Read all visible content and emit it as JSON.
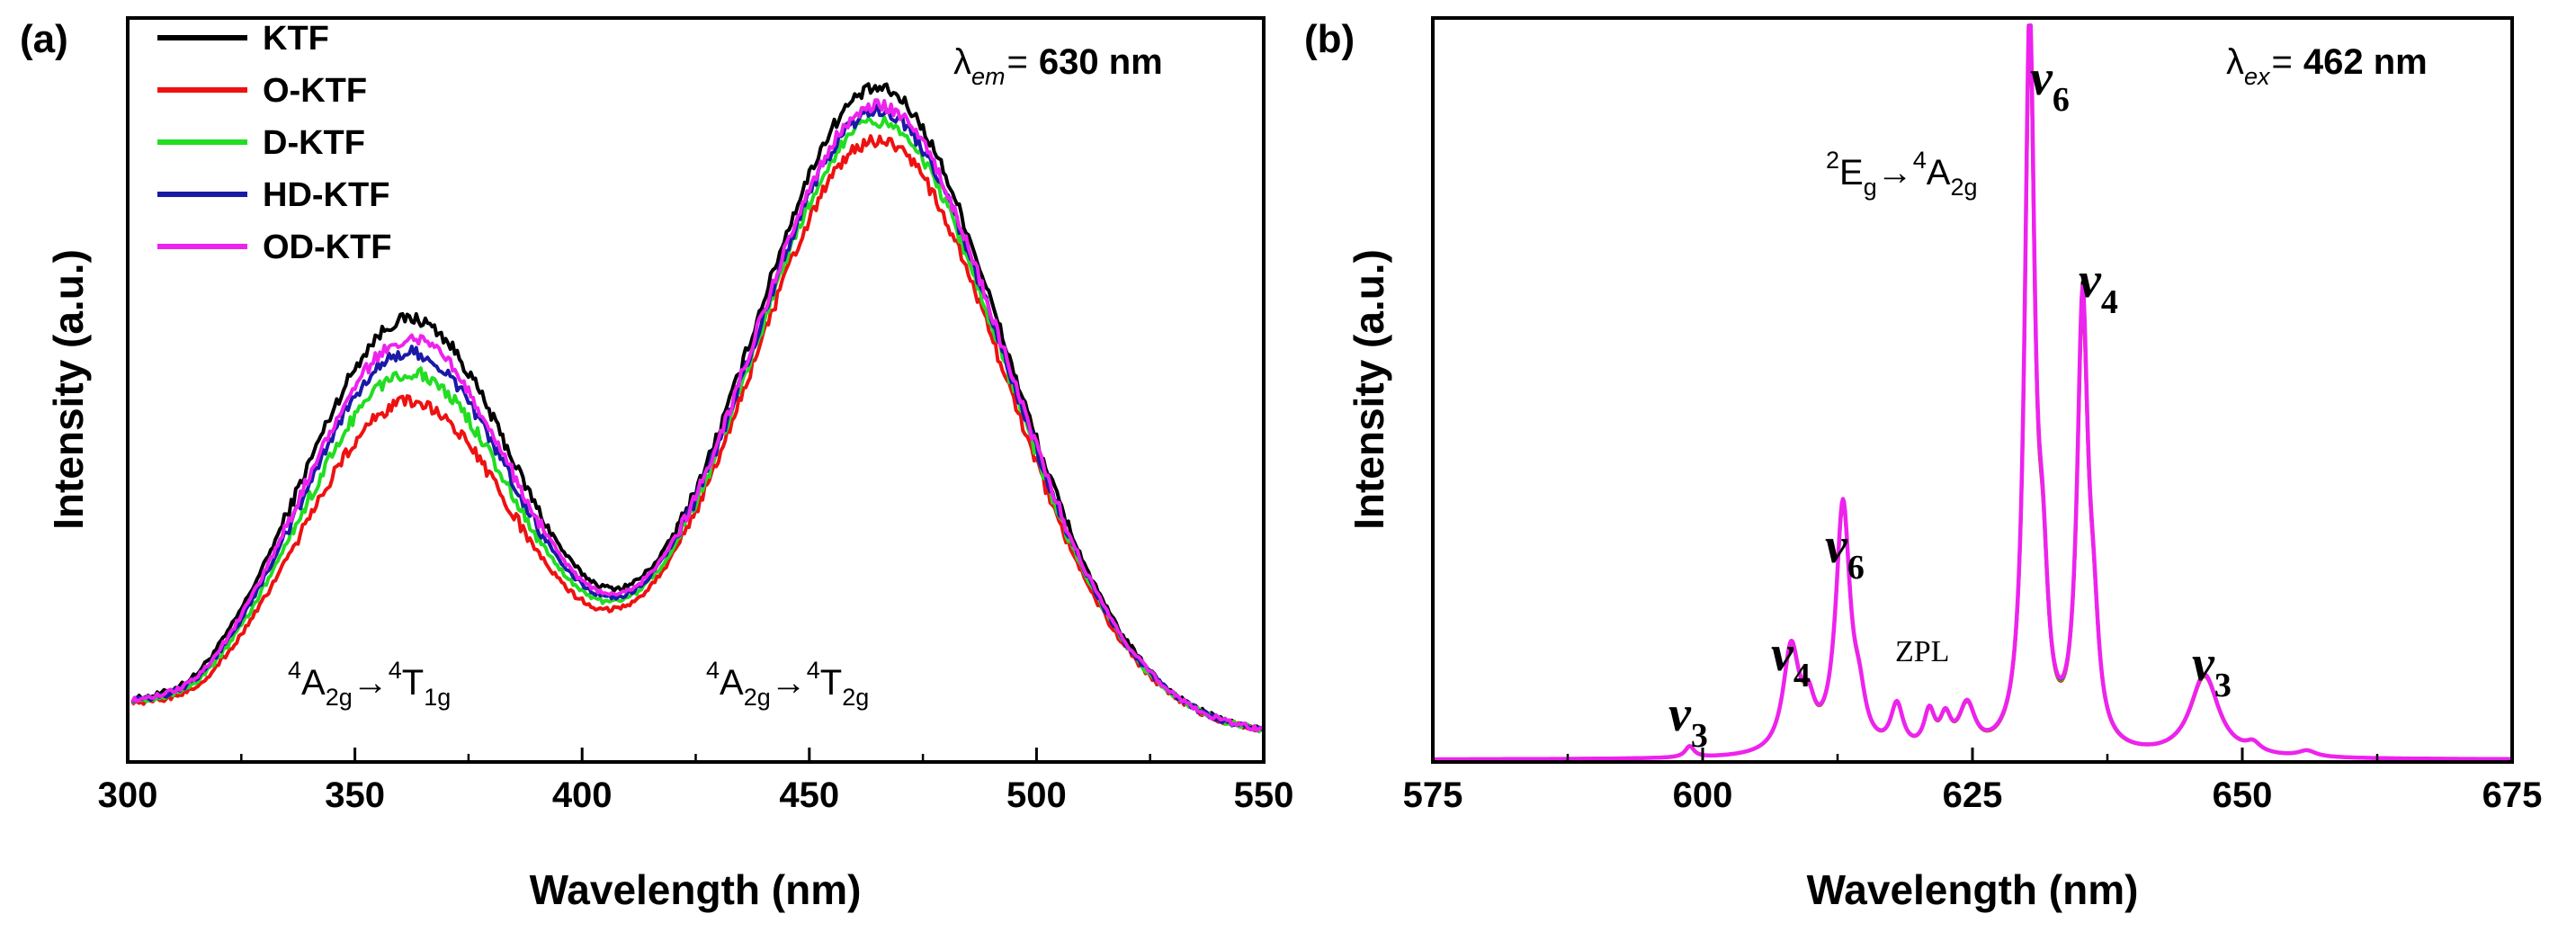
{
  "chart_data": [
    {
      "type": "line",
      "panel_label": "(a)",
      "xlabel": "Wavelength (nm)",
      "ylabel": "Intensity (a.u.)",
      "xlim": [
        300,
        550
      ],
      "ylim": [
        0,
        1.0
      ],
      "xticks": [
        "300",
        "350",
        "400",
        "450",
        "500",
        "550"
      ],
      "condition": {
        "symbol": "λ",
        "sub": "em",
        "eq": "=",
        "value": "630 nm"
      },
      "transitions": [
        {
          "pre": "4",
          "a": "A",
          "a_sub": "2g",
          "arrow": "→",
          "post": "4",
          "b": "T",
          "b_sub": "1g"
        },
        {
          "pre": "4",
          "a": "A",
          "a_sub": "2g",
          "arrow": "→",
          "post": "4",
          "b": "T",
          "b_sub": "2g"
        }
      ],
      "peak_model": {
        "baseline": 0.035,
        "bands": [
          {
            "center": 362,
            "sigma": 24,
            "amplitude": 0.56
          },
          {
            "center": 465,
            "sigma": 28,
            "amplitude": 0.87
          }
        ],
        "uv_edge": 0.03
      },
      "series": [
        {
          "name": "KTF",
          "color": "#000000",
          "scale": [
            1.0,
            1.0
          ]
        },
        {
          "name": "O-KTF",
          "color": "#ee1111",
          "scale": [
            0.8,
            0.92
          ]
        },
        {
          "name": "D-KTF",
          "color": "#22dd22",
          "scale": [
            0.87,
            0.95
          ]
        },
        {
          "name": "HD-KTF",
          "color": "#1a1aa6",
          "scale": [
            0.92,
            0.965
          ]
        },
        {
          "name": "OD-KTF",
          "color": "#ee22ee",
          "scale": [
            0.95,
            0.975
          ]
        }
      ]
    },
    {
      "type": "line",
      "panel_label": "(b)",
      "xlabel": "Wavelength (nm)",
      "ylabel": "Intensity (a.u.)",
      "xlim": [
        575,
        675
      ],
      "ylim": [
        0,
        1.0
      ],
      "xticks": [
        "575",
        "600",
        "625",
        "650",
        "675"
      ],
      "condition": {
        "symbol": "λ",
        "sub": "ex",
        "eq": "=",
        "value": "462 nm"
      },
      "transition": {
        "pre": "2",
        "a": "E",
        "a_sub": "g",
        "arrow": "→",
        "post": "4",
        "b": "A",
        "b_sub": "2g"
      },
      "peaks": [
        {
          "x": 598.8,
          "y": 0.015,
          "w": 0.5
        },
        {
          "x": 608.2,
          "y": 0.14,
          "w": 0.9
        },
        {
          "x": 609.8,
          "y": 0.05,
          "w": 0.7
        },
        {
          "x": 613.0,
          "y": 0.33,
          "w": 0.8
        },
        {
          "x": 614.5,
          "y": 0.05,
          "w": 0.7
        },
        {
          "x": 618.0,
          "y": 0.06,
          "w": 0.7
        },
        {
          "x": 621.0,
          "y": 0.05,
          "w": 0.6
        },
        {
          "x": 622.5,
          "y": 0.04,
          "w": 0.6
        },
        {
          "x": 624.5,
          "y": 0.06,
          "w": 0.9
        },
        {
          "x": 630.3,
          "y": 0.98,
          "w": 0.55
        },
        {
          "x": 631.5,
          "y": 0.18,
          "w": 0.6
        },
        {
          "x": 635.2,
          "y": 0.59,
          "w": 0.6
        },
        {
          "x": 636.2,
          "y": 0.12,
          "w": 0.6
        },
        {
          "x": 646.5,
          "y": 0.11,
          "w": 1.6
        },
        {
          "x": 651.0,
          "y": 0.012,
          "w": 0.8
        },
        {
          "x": 656.0,
          "y": 0.008,
          "w": 1.0
        }
      ],
      "annotations": [
        {
          "text": "v",
          "sub": "3",
          "x": 598
        },
        {
          "text": "v",
          "sub": "4",
          "x": 607.5
        },
        {
          "text": "v",
          "sub": "6",
          "x": 612.5
        },
        {
          "text": "ZPL",
          "x": 620.5
        },
        {
          "text": "v",
          "sub": "6",
          "x": 631.5
        },
        {
          "text": "v",
          "sub": "4",
          "x": 636
        },
        {
          "text": "v",
          "sub": "3",
          "x": 646.5
        }
      ],
      "series": [
        {
          "name": "KTF",
          "color": "#000000"
        },
        {
          "name": "O-KTF",
          "color": "#ee1111"
        },
        {
          "name": "D-KTF",
          "color": "#22dd22"
        },
        {
          "name": "HD-KTF",
          "color": "#1a1aa6"
        },
        {
          "name": "OD-KTF",
          "color": "#ee22ee"
        }
      ]
    }
  ]
}
